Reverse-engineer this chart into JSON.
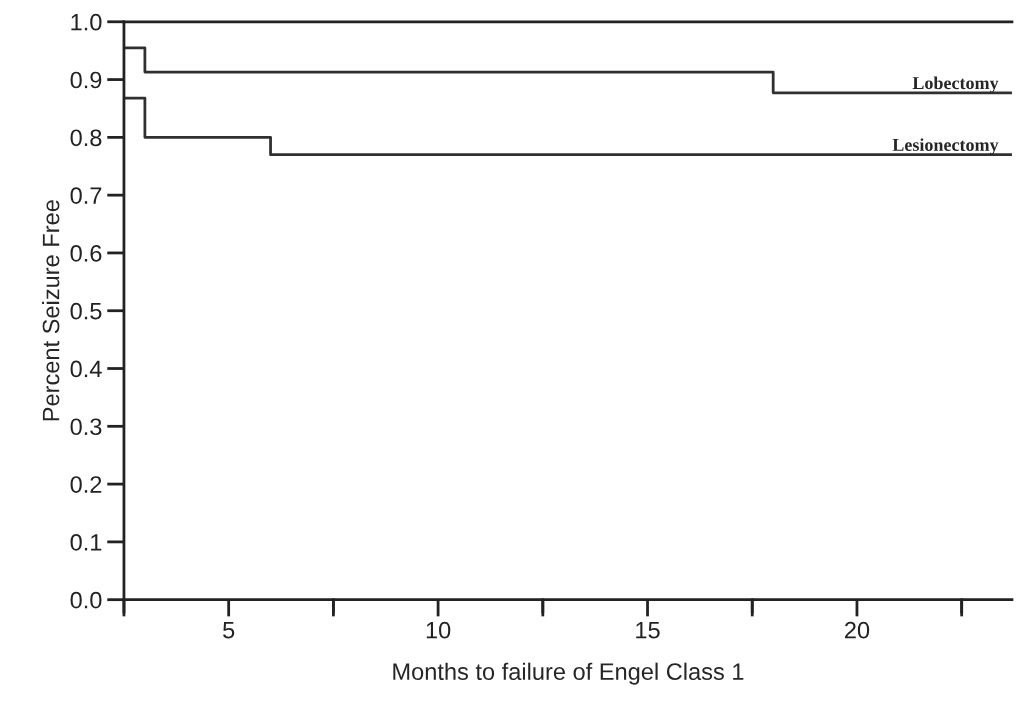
{
  "chart_data": {
    "type": "step",
    "xlabel": "Months to failure of Engel Class 1",
    "ylabel": "Percent Seizure Free",
    "series": [
      {
        "name": "Lobectomy",
        "color": "#303030",
        "x": [
          2.5,
          3,
          18,
          23.7
        ],
        "values": [
          0.955,
          0.913,
          0.877,
          0.877
        ]
      },
      {
        "name": "Lesionectomy",
        "color": "#303030",
        "x": [
          2.5,
          3,
          6,
          23.7
        ],
        "values": [
          0.868,
          0.8,
          0.77,
          0.77
        ]
      }
    ],
    "xlim": [
      2.5,
      23.7
    ],
    "ylim": [
      0,
      1
    ],
    "xticks": [
      {
        "value": 2.5,
        "label": null
      },
      5,
      {
        "value": 7.5,
        "label": null
      },
      10,
      {
        "value": 12.5,
        "label": null
      },
      15,
      {
        "value": 17.5,
        "label": null
      },
      20,
      {
        "value": 22.5,
        "label": null
      }
    ],
    "yticks": [
      {
        "value": 0,
        "label": "0.0"
      },
      0.1,
      0.2,
      0.3,
      0.4,
      0.5,
      0.6,
      0.7,
      0.8,
      0.9,
      {
        "value": 1,
        "label": "1.0"
      }
    ],
    "grid": false,
    "legend": false,
    "marker": "none",
    "line_style": "solid"
  }
}
